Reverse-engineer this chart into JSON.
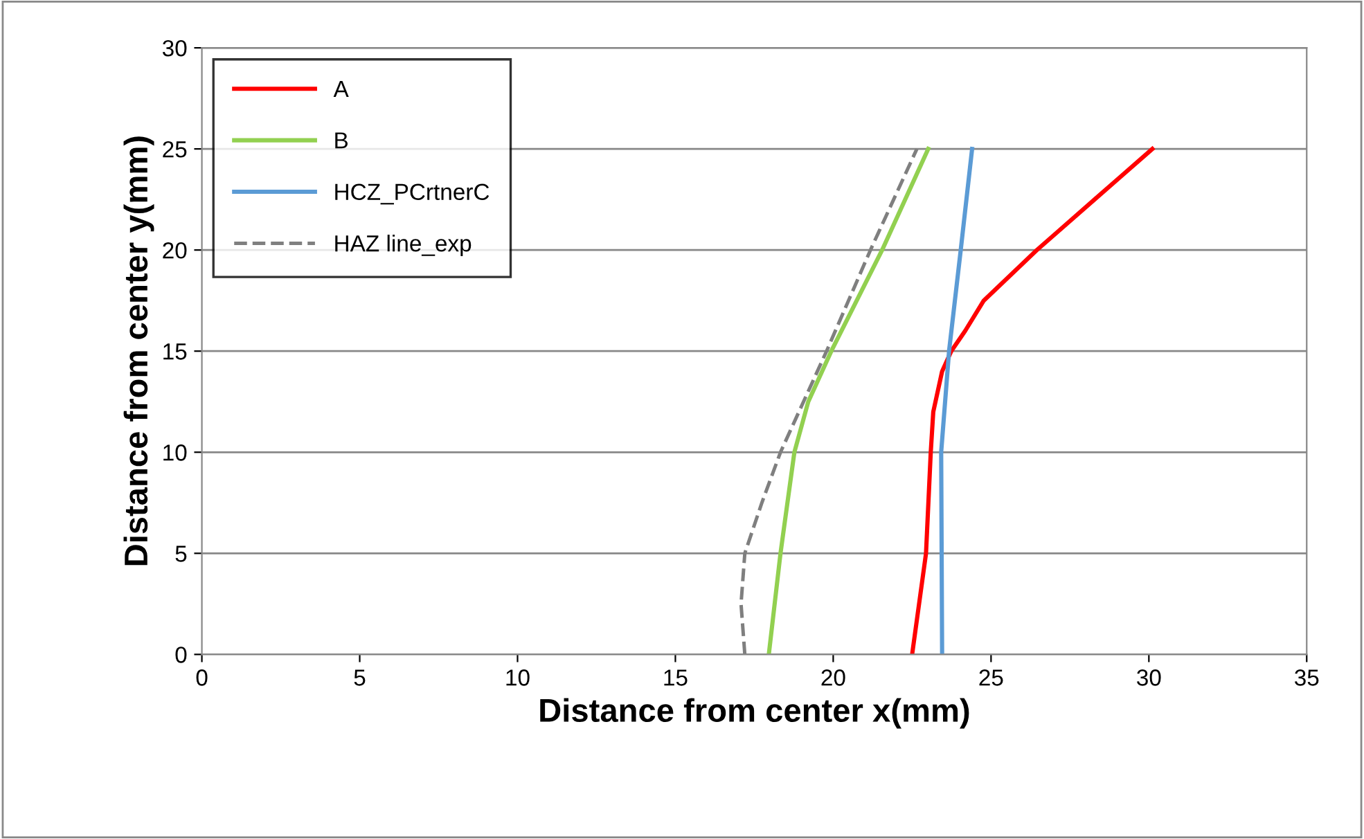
{
  "chart_data": {
    "type": "line",
    "xlabel": "Distance from center x(mm)",
    "ylabel": "Distance from center y(mm)",
    "xlim": [
      0,
      35
    ],
    "xticks": [
      0,
      5,
      10,
      15,
      20,
      25,
      30,
      35
    ],
    "ylim": [
      0,
      30
    ],
    "yticks": [
      0,
      5,
      10,
      15,
      20,
      25,
      30
    ],
    "grid": "y",
    "legend": "top left",
    "series": [
      {
        "name": "A",
        "color": "#ff0000",
        "x": [
          22.5,
          22.94,
          23.09,
          23.17,
          23.45,
          23.74,
          24.18,
          24.77,
          26.45,
          28.28,
          30.11
        ],
        "values": [
          0,
          5,
          10,
          12,
          14,
          15,
          16,
          17.5,
          20,
          22.5,
          25
        ]
      },
      {
        "name": "B",
        "color": "#92d050",
        "x": [
          17.96,
          18.33,
          18.77,
          19.21,
          19.94,
          21.55,
          23.01
        ],
        "values": [
          0,
          5,
          10,
          12.5,
          15,
          20,
          25
        ]
      },
      {
        "name": "HCZ_PCrtnerC",
        "color": "#5b9bd5",
        "x": [
          23.45,
          23.42,
          23.67,
          24.04,
          24.4
        ],
        "values": [
          0,
          10,
          15,
          20,
          25
        ]
      },
      {
        "name": "HAZ line_exp",
        "color": "#7f7f7f",
        "line_style": "dashed",
        "x": [
          17.2,
          17.08,
          17.2,
          17.74,
          18.33,
          19.06,
          19.79,
          21.18,
          22.65
        ],
        "values": [
          0,
          2.5,
          5,
          7.5,
          10,
          12.5,
          15,
          20,
          25
        ]
      }
    ]
  }
}
